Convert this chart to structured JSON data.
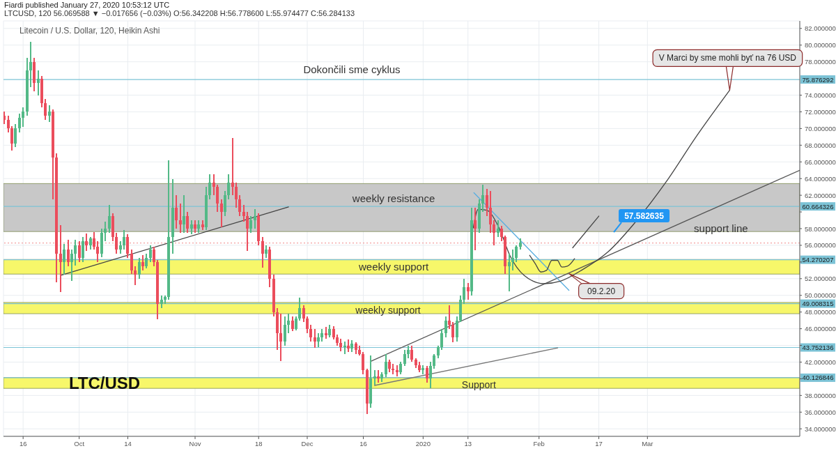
{
  "chart_data": {
    "type": "candlestick",
    "title": "Litecoin / U.S. Dollar, 120, Heikin Ashi",
    "subtitle": "LTCUSD, 120  56.069588 ▼ −0.017656 (−0.03%) O:56.342208 H:56.778600 L:55.974477 C:56.284133",
    "x": [
      "2019-09-11",
      "2019-09-12",
      "2019-09-13",
      "2019-09-14",
      "2019-09-15",
      "2019-09-16",
      "2019-09-17",
      "2019-09-18",
      "2019-09-19",
      "2019-09-20",
      "2019-09-21",
      "2019-09-22",
      "2019-09-23",
      "2019-09-24",
      "2019-09-25",
      "2019-09-26",
      "2019-09-27",
      "2019-09-28",
      "2019-09-29",
      "2019-09-30",
      "2019-10-01",
      "2019-10-02",
      "2019-10-03",
      "2019-10-04",
      "2019-10-05",
      "2019-10-06",
      "2019-10-07",
      "2019-10-08",
      "2019-10-09",
      "2019-10-10",
      "2019-10-11",
      "2019-10-12",
      "2019-10-13",
      "2019-10-14",
      "2019-10-15",
      "2019-10-16",
      "2019-10-17",
      "2019-10-18",
      "2019-10-19",
      "2019-10-20",
      "2019-10-21",
      "2019-10-22",
      "2019-10-23",
      "2019-10-24",
      "2019-10-25",
      "2019-10-26",
      "2019-10-27",
      "2019-10-28",
      "2019-10-29",
      "2019-10-30",
      "2019-10-31",
      "2019-11-01",
      "2019-11-02",
      "2019-11-03",
      "2019-11-04",
      "2019-11-05",
      "2019-11-06",
      "2019-11-07",
      "2019-11-08",
      "2019-11-09",
      "2019-11-10",
      "2019-11-11",
      "2019-11-12",
      "2019-11-13",
      "2019-11-14",
      "2019-11-15",
      "2019-11-16",
      "2019-11-17",
      "2019-11-18",
      "2019-11-19",
      "2019-11-20",
      "2019-11-21",
      "2019-11-22",
      "2019-11-23",
      "2019-11-24",
      "2019-11-25",
      "2019-11-26",
      "2019-11-27",
      "2019-11-28",
      "2019-11-29",
      "2019-11-30",
      "2019-12-01",
      "2019-12-02",
      "2019-12-03",
      "2019-12-04",
      "2019-12-05",
      "2019-12-06",
      "2019-12-07",
      "2019-12-08",
      "2019-12-09",
      "2019-12-10",
      "2019-12-11",
      "2019-12-12",
      "2019-12-13",
      "2019-12-14",
      "2019-12-15",
      "2019-12-16",
      "2019-12-17",
      "2019-12-18",
      "2019-12-19",
      "2019-12-20",
      "2019-12-21",
      "2019-12-22",
      "2019-12-23",
      "2019-12-24",
      "2019-12-25",
      "2019-12-26",
      "2019-12-27",
      "2019-12-28",
      "2019-12-29",
      "2019-12-30",
      "2019-12-31",
      "2020-01-01",
      "2020-01-02",
      "2020-01-03",
      "2020-01-04",
      "2020-01-05",
      "2020-01-06",
      "2020-01-07",
      "2020-01-08",
      "2020-01-09",
      "2020-01-10",
      "2020-01-11",
      "2020-01-12",
      "2020-01-13",
      "2020-01-14",
      "2020-01-15",
      "2020-01-16",
      "2020-01-17",
      "2020-01-18",
      "2020-01-19",
      "2020-01-20",
      "2020-01-21",
      "2020-01-22",
      "2020-01-23",
      "2020-01-24",
      "2020-01-25",
      "2020-01-26",
      "2020-01-27"
    ],
    "ohlc": [
      [
        71.5,
        72,
        70.5,
        71
      ],
      [
        71,
        71.5,
        69.5,
        70
      ],
      [
        70,
        70.3,
        67.4,
        68.2
      ],
      [
        68.2,
        70.5,
        67.8,
        70
      ],
      [
        70,
        71.8,
        69.5,
        71.3
      ],
      [
        71.3,
        72.5,
        70.2,
        72
      ],
      [
        72,
        78.5,
        71.5,
        77
      ],
      [
        77,
        80.4,
        75,
        78
      ],
      [
        78,
        78.5,
        74.5,
        75.5
      ],
      [
        75.5,
        77,
        74,
        76
      ],
      [
        76,
        76.3,
        72.5,
        73
      ],
      [
        73,
        73.5,
        71,
        71.5
      ],
      [
        71.5,
        72.8,
        70.8,
        72
      ],
      [
        72,
        72.3,
        61.5,
        66.5
      ],
      [
        66.5,
        67,
        51.6,
        55
      ],
      [
        55,
        58.4,
        50.4,
        54
      ],
      [
        54,
        56.2,
        52.5,
        55.5
      ],
      [
        55.5,
        56.7,
        53.5,
        54
      ],
      [
        54,
        55.5,
        51.7,
        55
      ],
      [
        55,
        56.7,
        53.6,
        56
      ],
      [
        56,
        56.5,
        54,
        54.5
      ],
      [
        54.5,
        57,
        54,
        56.5
      ],
      [
        56.5,
        57.4,
        55.3,
        56
      ],
      [
        56,
        57,
        55.5,
        56.8
      ],
      [
        56.8,
        57.6,
        55.5,
        55.8
      ],
      [
        55.8,
        56.5,
        54,
        55
      ],
      [
        55,
        58,
        54.6,
        57.5
      ],
      [
        57.5,
        58.8,
        56.5,
        58
      ],
      [
        58,
        60.8,
        57.5,
        59.5
      ],
      [
        59.5,
        59.8,
        56.5,
        57
      ],
      [
        57,
        57.5,
        55,
        55.5
      ],
      [
        55.5,
        56.5,
        55,
        56
      ],
      [
        56,
        57.8,
        55.5,
        57
      ],
      [
        57,
        57.3,
        54.5,
        55
      ],
      [
        55,
        55.5,
        52.6,
        53
      ],
      [
        53,
        53.5,
        51.2,
        52.5
      ],
      [
        52.5,
        54.5,
        52,
        54
      ],
      [
        54,
        54.8,
        53,
        53.5
      ],
      [
        53.5,
        55,
        53.2,
        54.5
      ],
      [
        54.5,
        56,
        54,
        55.5
      ],
      [
        55.5,
        55.8,
        53.5,
        54
      ],
      [
        54,
        54.2,
        47.1,
        49
      ],
      [
        49,
        50,
        48.5,
        49.5
      ],
      [
        49.5,
        50,
        49,
        49.8
      ],
      [
        49.8,
        66.2,
        49.5,
        57
      ],
      [
        57,
        63.9,
        55,
        60.5
      ],
      [
        60.5,
        62,
        58,
        59
      ],
      [
        59,
        61,
        57.5,
        58.5
      ],
      [
        58.5,
        62,
        57.5,
        59.5
      ],
      [
        59.5,
        60,
        57.5,
        58
      ],
      [
        58,
        59,
        57.3,
        58.5
      ],
      [
        58.5,
        59,
        57.5,
        58
      ],
      [
        58,
        59,
        57.5,
        58.5
      ],
      [
        58.5,
        59,
        57.8,
        58.2
      ],
      [
        58.2,
        63,
        57.8,
        62
      ],
      [
        62,
        64.5,
        61.5,
        63.5
      ],
      [
        63.5,
        64.5,
        62,
        63
      ],
      [
        63,
        63.3,
        60,
        61
      ],
      [
        61,
        61.5,
        58.2,
        60
      ],
      [
        60,
        62.5,
        59.5,
        62
      ],
      [
        62,
        64.5,
        61.5,
        63.5
      ],
      [
        63.5,
        68.9,
        62,
        63
      ],
      [
        63,
        63.5,
        60.5,
        61.5
      ],
      [
        61.5,
        62,
        59.5,
        60
      ],
      [
        60,
        60.8,
        58.8,
        59.5
      ],
      [
        59.5,
        60,
        55.3,
        58
      ],
      [
        58,
        59.5,
        57.5,
        59
      ],
      [
        59,
        60.3,
        58,
        59.5
      ],
      [
        59.5,
        59.8,
        56,
        56.5
      ],
      [
        56.5,
        57,
        53.3,
        55
      ],
      [
        55,
        56,
        54.5,
        55.5
      ],
      [
        55.5,
        55.8,
        51,
        52
      ],
      [
        52,
        52.5,
        47.5,
        48
      ],
      [
        48,
        48.5,
        43.5,
        45.5
      ],
      [
        45.5,
        47.8,
        42.1,
        44.5
      ],
      [
        44.5,
        47.5,
        44,
        46.5
      ],
      [
        46.5,
        47.8,
        45.5,
        47
      ],
      [
        47,
        47.5,
        45.7,
        46
      ],
      [
        46,
        47.5,
        45.8,
        47.2
      ],
      [
        47.2,
        49.7,
        47,
        48.5
      ],
      [
        48.5,
        48.8,
        46.8,
        47.2
      ],
      [
        47.2,
        47.5,
        45.5,
        46
      ],
      [
        46,
        46.5,
        44.5,
        45
      ],
      [
        45,
        46,
        43.7,
        44.5
      ],
      [
        44.5,
        45.5,
        43.8,
        45
      ],
      [
        45,
        46,
        44.5,
        45.5
      ],
      [
        45.5,
        46.2,
        44.8,
        45.2
      ],
      [
        45.2,
        46.5,
        45,
        46
      ],
      [
        46,
        46.3,
        44.7,
        45
      ],
      [
        45,
        45.3,
        44,
        44.3
      ],
      [
        44.3,
        44.8,
        43.3,
        43.8
      ],
      [
        43.8,
        44.5,
        43,
        44
      ],
      [
        44,
        44.7,
        43.2,
        43.6
      ],
      [
        43.6,
        44.6,
        43.2,
        44.2
      ],
      [
        44.2,
        44.4,
        43,
        43.5
      ],
      [
        43.5,
        44,
        42.8,
        43
      ],
      [
        43,
        43.2,
        40.5,
        41
      ],
      [
        41,
        41.2,
        35.8,
        37
      ],
      [
        37,
        42.8,
        36.5,
        40
      ],
      [
        40,
        41,
        39.3,
        40.3
      ],
      [
        40.3,
        41,
        39.5,
        40
      ],
      [
        40,
        40.8,
        39.6,
        40.5
      ],
      [
        40.5,
        43,
        40.2,
        42
      ],
      [
        42,
        42.3,
        40.8,
        41.2
      ],
      [
        41.2,
        41.8,
        40.5,
        41
      ],
      [
        41,
        41.6,
        40.3,
        40.8
      ],
      [
        40.8,
        42,
        40.5,
        41.8
      ],
      [
        41.8,
        43.5,
        41.5,
        43
      ],
      [
        43,
        44,
        42.5,
        43.5
      ],
      [
        43.5,
        44,
        42,
        42.3
      ],
      [
        42.3,
        42.5,
        41.3,
        41.6
      ],
      [
        41.6,
        42,
        40.8,
        41
      ],
      [
        41,
        41.6,
        40.5,
        41.3
      ],
      [
        41.3,
        41.5,
        39.5,
        40
      ],
      [
        40,
        42,
        38.9,
        41.5
      ],
      [
        41.5,
        43,
        41.2,
        42.8
      ],
      [
        42.8,
        44,
        42.5,
        43.8
      ],
      [
        43.8,
        46,
        43.5,
        45.5
      ],
      [
        45.5,
        47.5,
        45,
        47
      ],
      [
        47,
        48.8,
        46,
        46.5
      ],
      [
        46.5,
        46.8,
        44.4,
        45
      ],
      [
        45,
        47.5,
        44.5,
        47
      ],
      [
        47,
        50,
        46.8,
        49.5
      ],
      [
        49.5,
        52,
        49,
        51
      ],
      [
        51,
        51.5,
        49.5,
        50.5
      ],
      [
        50.5,
        60.5,
        50,
        59
      ],
      [
        59,
        60.5,
        55.4,
        58
      ],
      [
        58,
        61.5,
        57.5,
        61
      ],
      [
        61,
        63.3,
        60,
        62
      ],
      [
        62,
        62.8,
        59.5,
        60.5
      ],
      [
        60.5,
        62.5,
        57.5,
        58.5
      ],
      [
        58.5,
        59,
        56,
        57.5
      ],
      [
        57.5,
        59,
        57,
        58
      ],
      [
        58,
        58.3,
        56.5,
        57
      ],
      [
        57,
        57.2,
        52.6,
        53.5
      ],
      [
        53.5,
        55,
        50.5,
        54
      ],
      [
        54,
        55.5,
        53,
        54.5
      ],
      [
        54.5,
        56,
        54,
        55.8
      ],
      [
        55.8,
        56.8,
        55.5,
        56.3
      ]
    ],
    "colors": [
      "#eb4d5c",
      "#eb4d5c",
      "#eb4d5c",
      "#53b987",
      "#53b987",
      "#53b987",
      "#53b987",
      "#53b987",
      "#eb4d5c",
      "#53b987",
      "#eb4d5c",
      "#eb4d5c",
      "#53b987",
      "#eb4d5c",
      "#eb4d5c",
      "#eb4d5c",
      "#53b987",
      "#eb4d5c",
      "#53b987",
      "#53b987",
      "#eb4d5c",
      "#53b987",
      "#eb4d5c",
      "#53b987",
      "#eb4d5c",
      "#eb4d5c",
      "#53b987",
      "#53b987",
      "#53b987",
      "#eb4d5c",
      "#eb4d5c",
      "#53b987",
      "#53b987",
      "#eb4d5c",
      "#eb4d5c",
      "#eb4d5c",
      "#53b987",
      "#eb4d5c",
      "#53b987",
      "#53b987",
      "#eb4d5c",
      "#eb4d5c",
      "#53b987",
      "#53b987",
      "#53b987",
      "#53b987",
      "#eb4d5c",
      "#eb4d5c",
      "#53b987",
      "#eb4d5c",
      "#53b987",
      "#eb4d5c",
      "#53b987",
      "#eb4d5c",
      "#53b987",
      "#53b987",
      "#eb4d5c",
      "#eb4d5c",
      "#eb4d5c",
      "#53b987",
      "#53b987",
      "#eb4d5c",
      "#eb4d5c",
      "#eb4d5c",
      "#eb4d5c",
      "#eb4d5c",
      "#53b987",
      "#53b987",
      "#eb4d5c",
      "#eb4d5c",
      "#53b987",
      "#eb4d5c",
      "#eb4d5c",
      "#eb4d5c",
      "#eb4d5c",
      "#53b987",
      "#53b987",
      "#eb4d5c",
      "#53b987",
      "#53b987",
      "#eb4d5c",
      "#eb4d5c",
      "#eb4d5c",
      "#eb4d5c",
      "#53b987",
      "#53b987",
      "#eb4d5c",
      "#53b987",
      "#eb4d5c",
      "#eb4d5c",
      "#eb4d5c",
      "#53b987",
      "#eb4d5c",
      "#53b987",
      "#eb4d5c",
      "#eb4d5c",
      "#eb4d5c",
      "#eb4d5c",
      "#53b987",
      "#53b987",
      "#eb4d5c",
      "#53b987",
      "#53b987",
      "#eb4d5c",
      "#eb4d5c",
      "#eb4d5c",
      "#53b987",
      "#53b987",
      "#53b987",
      "#eb4d5c",
      "#eb4d5c",
      "#eb4d5c",
      "#53b987",
      "#eb4d5c",
      "#53b987",
      "#53b987",
      "#53b987",
      "#53b987",
      "#53b987",
      "#eb4d5c",
      "#eb4d5c",
      "#53b987",
      "#53b987",
      "#53b987",
      "#eb4d5c",
      "#53b987",
      "#eb4d5c",
      "#53b987",
      "#53b987",
      "#eb4d5c",
      "#eb4d5c",
      "#eb4d5c",
      "#53b987",
      "#eb4d5c",
      "#eb4d5c",
      "#53b987",
      "#53b987",
      "#53b987",
      "#53b987"
    ],
    "series": [
      {
        "type": "line",
        "color": "#444444",
        "x": [
          "2019-09-26",
          "2019-11-26"
        ],
        "values": [
          52.4,
          60.6
        ]
      },
      {
        "name": "support line",
        "type": "line",
        "color": "#555555",
        "x": [
          "2019-12-18",
          "2020-04-10T18:00"
        ],
        "values": [
          42.1,
          65.0
        ]
      },
      {
        "type": "line",
        "color": "#777777",
        "x": [
          "2019-12-19",
          "2020-02-06"
        ],
        "values": [
          39.2,
          43.7
        ]
      },
      {
        "type": "line",
        "color": "#5aaee0",
        "x": [
          "2020-01-14T14:00",
          "2020-02-09"
        ],
        "values": [
          62.3,
          50.6
        ]
      },
      {
        "type": "line",
        "color": "#444444",
        "x": [
          "2020-01-14T10:00",
          "2020-01-15T17:00",
          "2020-01-18",
          "2020-01-21T07:00",
          "2020-01-24T07:00",
          "2020-01-28",
          "2020-02-02T07:00",
          "2020-02-06T17:00",
          "2020-02-12T17:00",
          "2020-02-19T10:00",
          "2020-02-27",
          "2020-03-06",
          "2020-03-14",
          "2020-03-23"
        ],
        "values": [
          58.1,
          60.3,
          60.2,
          58.1,
          54.7,
          52.4,
          51.4,
          51.7,
          53.1,
          55.2,
          58.9,
          63.6,
          69.0,
          74.6
        ]
      },
      {
        "type": "line",
        "color": "#444444",
        "x": [
          "2020-01-29T12:00",
          "2020-01-31",
          "2020-02-01T12:00",
          "2020-02-03",
          "2020-02-04T10:00",
          "2020-02-05T22:00",
          "2020-02-07T02:00",
          "2020-02-08T14:00",
          "2020-02-10T12:00"
        ],
        "values": [
          54.8,
          53.8,
          52.8,
          53.0,
          54.2,
          54.2,
          53.4,
          53.5,
          54.4
        ]
      },
      {
        "type": "line",
        "color": "#444444",
        "x": [
          "2020-02-10",
          "2020-02-17"
        ],
        "values": [
          55.7,
          59.5
        ]
      }
    ],
    "xlim": [
      "2019-09-10T18:00",
      "2020-04-10T18:00"
    ],
    "xticks": [
      {
        "value": "2019-09-16",
        "label": "16"
      },
      {
        "value": "2019-10-01",
        "label": "Oct"
      },
      {
        "value": "2019-10-14",
        "label": "14"
      },
      {
        "value": "2019-11-01",
        "label": "Nov"
      },
      {
        "value": "2019-11-18",
        "label": "18"
      },
      {
        "value": "2019-12-01",
        "label": "Dec"
      },
      {
        "value": "2019-12-16",
        "label": "16"
      },
      {
        "value": "2020-01-01",
        "label": "2020"
      },
      {
        "value": "2020-01-13",
        "label": "13"
      },
      {
        "value": "2020-02-01",
        "label": "Feb"
      },
      {
        "value": "2020-02-17",
        "label": "17"
      },
      {
        "value": "2020-03-01",
        "label": "Mar"
      }
    ],
    "ylim": [
      33.1,
      82.9
    ],
    "yticks": [
      {
        "value": 34,
        "label": "34.000000"
      },
      {
        "value": 36,
        "label": "36.000000"
      },
      {
        "value": 38,
        "label": "38.000000"
      },
      {
        "value": 40,
        "label": null
      },
      {
        "value": 42,
        "label": "42.000000"
      },
      {
        "value": 44,
        "label": null
      },
      {
        "value": 46,
        "label": "46.000000"
      },
      {
        "value": 48,
        "label": "48.000000"
      },
      {
        "value": 50,
        "label": "50.000000"
      },
      {
        "value": 52,
        "label": "52.000000"
      },
      {
        "value": 54,
        "label": null
      },
      {
        "value": 56,
        "label": "56.000000"
      },
      {
        "value": 58,
        "label": "58.000000"
      },
      {
        "value": 60,
        "label": null
      },
      {
        "value": 62,
        "label": "62.000000"
      },
      {
        "value": 64,
        "label": "64.000000"
      },
      {
        "value": 66,
        "label": "66.000000"
      },
      {
        "value": 68,
        "label": "68.000000"
      },
      {
        "value": 70,
        "label": "70.000000"
      },
      {
        "value": 72,
        "label": "72.000000"
      },
      {
        "value": 74,
        "label": "74.000000"
      },
      {
        "value": 78,
        "label": "78.000000"
      },
      {
        "value": 80,
        "label": "80.000000"
      },
      {
        "value": 82,
        "label": "82.000000"
      }
    ],
    "ref_lines": [
      {
        "axis": "y",
        "value": 75.876292,
        "label": "75.876292",
        "color": "#7cc3d6"
      },
      {
        "axis": "y",
        "value": 60.664326,
        "label": "60.664326",
        "color": "#7cc3d6"
      },
      {
        "axis": "y",
        "value": 56.28,
        "color": "#f2a0a0",
        "line_style": "dotted"
      },
      {
        "axis": "y",
        "value": 54.270207,
        "label": "54.270207",
        "color": "#7cc3d6"
      },
      {
        "axis": "y",
        "value": 49.008315,
        "label": "49.008315",
        "color": "#7cc3d6"
      },
      {
        "axis": "y",
        "value": 43.752136,
        "label": "43.752136",
        "color": "#7cc3d6"
      },
      {
        "axis": "y",
        "value": 40.126846,
        "label": "40.126846",
        "color": "#7cc3d6"
      }
    ],
    "bands": [
      {
        "axis": "y",
        "from": 57.65,
        "to": 63.4,
        "label": "weekly resistance",
        "color": "#c8c8c8"
      },
      {
        "axis": "y",
        "from": 52.55,
        "to": 54.3,
        "label": "weekly support",
        "color": "#f7f76a"
      },
      {
        "axis": "y",
        "from": 47.8,
        "to": 49.15,
        "label": "weekly support",
        "color": "#f7f76a"
      },
      {
        "axis": "y",
        "from": 38.85,
        "to": 40.15,
        "label": "Support",
        "color": "#f7f76a"
      }
    ],
    "annotations": [
      "Fiardi published January 27, 2020 10:53:12 UTC",
      "Dokončili sme cyklus",
      "LTC/USD",
      {
        "text": "V Marci by sme mohli byť na 76 USD",
        "x": "2020-03-23",
        "y": 74.6
      },
      {
        "text": "09.2.20",
        "x": "2020-02-09",
        "y": 52.6
      },
      {
        "text": "57.582635",
        "x": "2020-02-21",
        "y": 57.58
      }
    ],
    "grid": true,
    "marker": "none"
  }
}
